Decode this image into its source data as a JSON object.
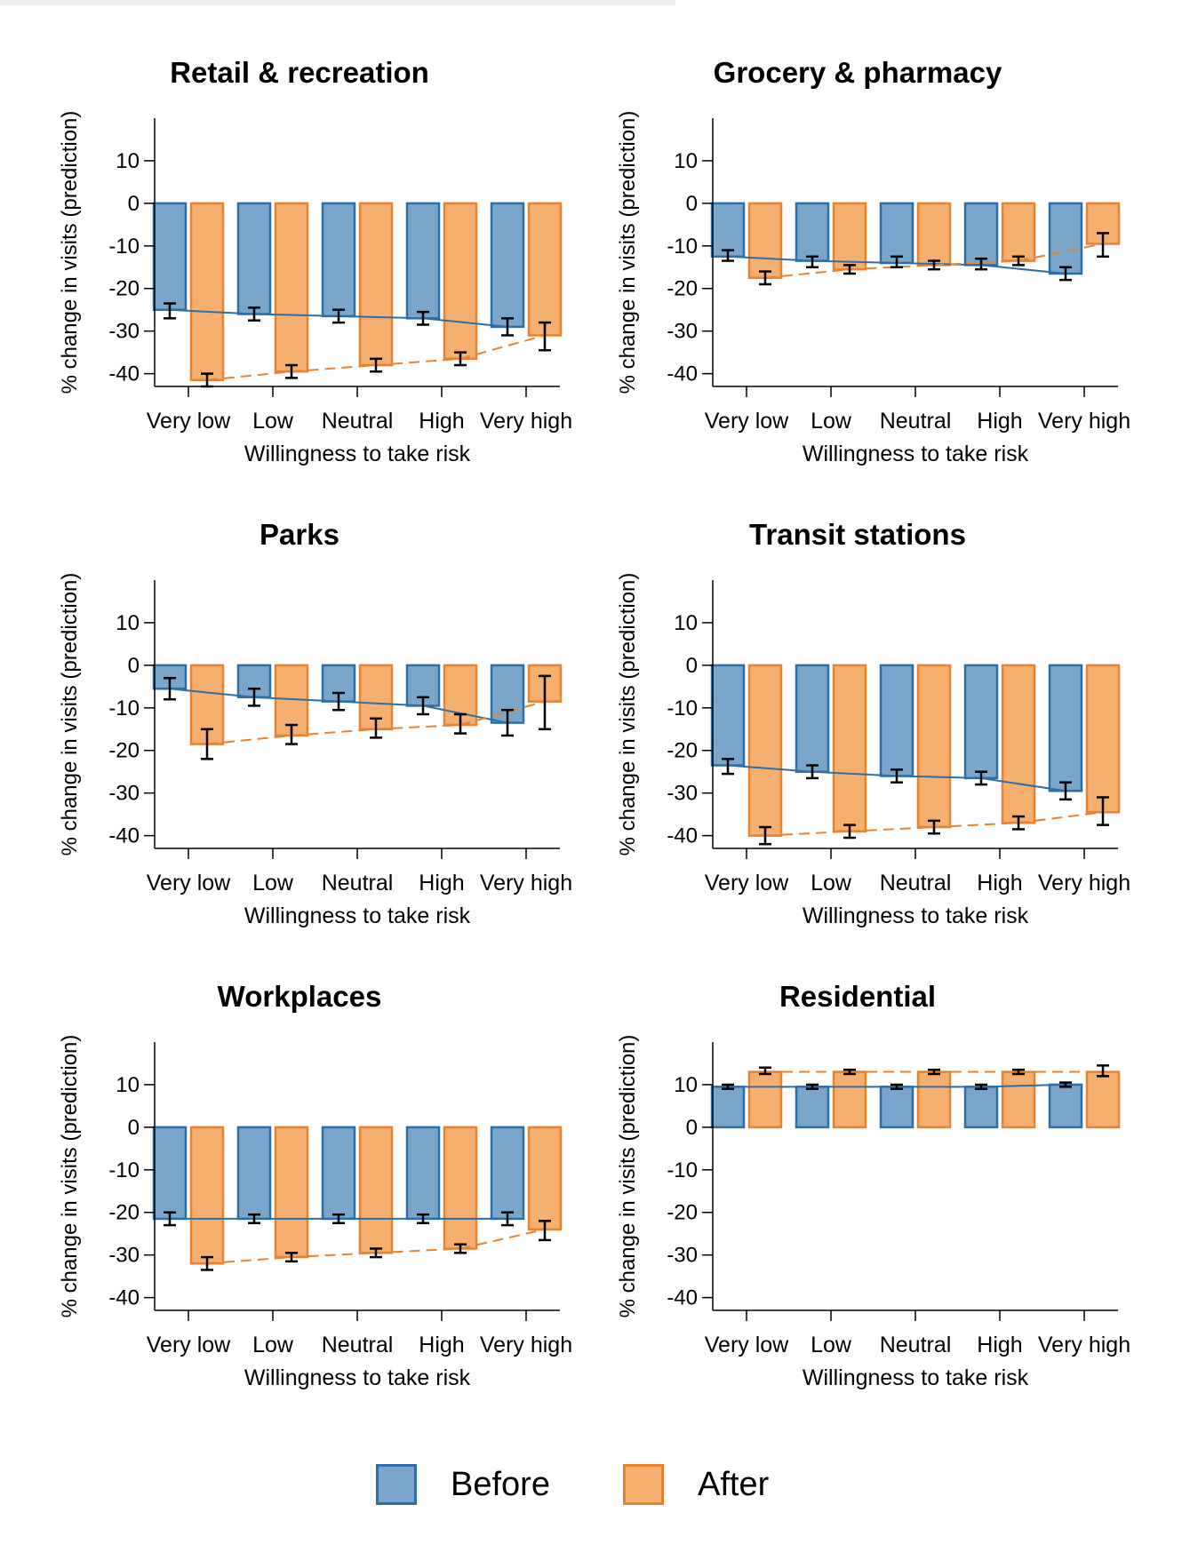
{
  "colors": {
    "before_fill": "#7aa6cc",
    "before_edge": "#2e6ea6",
    "after_fill": "#f5b070",
    "after_edge": "#e8822f",
    "axis": "#000000",
    "errorbar": "#000000"
  },
  "legend": {
    "before_label": "Before",
    "after_label": "After"
  },
  "chart_data": [
    {
      "type": "bar",
      "title": "Retail & recreation",
      "xlabel": "Willingness to take risk",
      "ylabel": "% change in visits (prediction)",
      "categories": [
        "Very low",
        "Low",
        "Neutral",
        "High",
        "Very high"
      ],
      "ylim": [
        -43,
        20
      ],
      "yticks": [
        10,
        0,
        -10,
        -20,
        -30,
        -40
      ],
      "series": [
        {
          "name": "Before",
          "values": [
            -25,
            -26,
            -26.5,
            -27,
            -29
          ],
          "ci": [
            [
              -27,
              -23.5
            ],
            [
              -27.5,
              -24.5
            ],
            [
              -28,
              -25
            ],
            [
              -28.5,
              -25.5
            ],
            [
              -31,
              -27
            ]
          ]
        },
        {
          "name": "After",
          "values": [
            -41.5,
            -39.5,
            -38,
            -36.5,
            -31
          ],
          "ci": [
            [
              -43,
              -40
            ],
            [
              -41,
              -38
            ],
            [
              -39.5,
              -36.5
            ],
            [
              -38,
              -35
            ],
            [
              -34.5,
              -28
            ]
          ]
        }
      ]
    },
    {
      "type": "bar",
      "title": "Grocery & pharmacy",
      "xlabel": "Willingness to take risk",
      "ylabel": "% change in visits (prediction)",
      "categories": [
        "Very low",
        "Low",
        "Neutral",
        "High",
        "Very high"
      ],
      "ylim": [
        -43,
        20
      ],
      "yticks": [
        10,
        0,
        -10,
        -20,
        -30,
        -40
      ],
      "series": [
        {
          "name": "Before",
          "values": [
            -12.5,
            -13.5,
            -14,
            -14.5,
            -16.5
          ],
          "ci": [
            [
              -13.5,
              -11
            ],
            [
              -15,
              -12.5
            ],
            [
              -15,
              -12.5
            ],
            [
              -15.5,
              -13
            ],
            [
              -18,
              -15
            ]
          ]
        },
        {
          "name": "After",
          "values": [
            -17.5,
            -15.5,
            -14.5,
            -13.5,
            -9.5
          ],
          "ci": [
            [
              -19,
              -16
            ],
            [
              -16.5,
              -14.5
            ],
            [
              -15.5,
              -13.5
            ],
            [
              -14.5,
              -12.5
            ],
            [
              -12.5,
              -7
            ]
          ]
        }
      ]
    },
    {
      "type": "bar",
      "title": "Parks",
      "xlabel": "Willingness to take risk",
      "ylabel": "% change in visits (prediction)",
      "categories": [
        "Very low",
        "Low",
        "Neutral",
        "High",
        "Very high"
      ],
      "ylim": [
        -43,
        20
      ],
      "yticks": [
        10,
        0,
        -10,
        -20,
        -30,
        -40
      ],
      "series": [
        {
          "name": "Before",
          "values": [
            -5.5,
            -7.5,
            -8.5,
            -9.5,
            -13.5
          ],
          "ci": [
            [
              -8,
              -3
            ],
            [
              -9.5,
              -5.5
            ],
            [
              -10.5,
              -6.5
            ],
            [
              -11.5,
              -7.5
            ],
            [
              -16.5,
              -10.5
            ]
          ]
        },
        {
          "name": "After",
          "values": [
            -18.5,
            -16.5,
            -15,
            -14,
            -8.5
          ],
          "ci": [
            [
              -22,
              -15
            ],
            [
              -18.5,
              -14
            ],
            [
              -17,
              -12.5
            ],
            [
              -16,
              -11.5
            ],
            [
              -15,
              -2.5
            ]
          ]
        }
      ]
    },
    {
      "type": "bar",
      "title": "Transit stations",
      "xlabel": "Willingness to take risk",
      "ylabel": "% change in visits (prediction)",
      "categories": [
        "Very low",
        "Low",
        "Neutral",
        "High",
        "Very high"
      ],
      "ylim": [
        -43,
        20
      ],
      "yticks": [
        10,
        0,
        -10,
        -20,
        -30,
        -40
      ],
      "series": [
        {
          "name": "Before",
          "values": [
            -23.5,
            -25,
            -26,
            -26.5,
            -29.5
          ],
          "ci": [
            [
              -25.5,
              -22
            ],
            [
              -26.5,
              -23.5
            ],
            [
              -27.5,
              -24.5
            ],
            [
              -28,
              -25
            ],
            [
              -31.5,
              -27.5
            ]
          ]
        },
        {
          "name": "After",
          "values": [
            -40,
            -39,
            -38,
            -37,
            -34.5
          ],
          "ci": [
            [
              -42,
              -38
            ],
            [
              -40.5,
              -37.5
            ],
            [
              -39.5,
              -36.5
            ],
            [
              -38.5,
              -35.5
            ],
            [
              -37.5,
              -31
            ]
          ]
        }
      ]
    },
    {
      "type": "bar",
      "title": "Workplaces",
      "xlabel": "Willingness to take risk",
      "ylabel": "% change in visits (prediction)",
      "categories": [
        "Very low",
        "Low",
        "Neutral",
        "High",
        "Very high"
      ],
      "ylim": [
        -43,
        20
      ],
      "yticks": [
        10,
        0,
        -10,
        -20,
        -30,
        -40
      ],
      "series": [
        {
          "name": "Before",
          "values": [
            -21.5,
            -21.5,
            -21.5,
            -21.5,
            -21.5
          ],
          "ci": [
            [
              -23,
              -20
            ],
            [
              -22.5,
              -20.5
            ],
            [
              -22.5,
              -20.5
            ],
            [
              -22.5,
              -20.5
            ],
            [
              -23,
              -20
            ]
          ]
        },
        {
          "name": "After",
          "values": [
            -32,
            -30.5,
            -29.5,
            -28.5,
            -24
          ],
          "ci": [
            [
              -33.5,
              -30.5
            ],
            [
              -31.5,
              -29.5
            ],
            [
              -30.5,
              -28.5
            ],
            [
              -29.5,
              -27.5
            ],
            [
              -26.5,
              -22
            ]
          ]
        }
      ]
    },
    {
      "type": "bar",
      "title": "Residential",
      "xlabel": "Willingness to take risk",
      "ylabel": "% change in visits (prediction)",
      "categories": [
        "Very low",
        "Low",
        "Neutral",
        "High",
        "Very high"
      ],
      "ylim": [
        -43,
        20
      ],
      "yticks": [
        10,
        0,
        -10,
        -20,
        -30,
        -40
      ],
      "series": [
        {
          "name": "Before",
          "values": [
            9.5,
            9.5,
            9.5,
            9.5,
            10
          ],
          "ci": [
            [
              9,
              10
            ],
            [
              9,
              10
            ],
            [
              9,
              10
            ],
            [
              9,
              10
            ],
            [
              9.5,
              10.5
            ]
          ]
        },
        {
          "name": "After",
          "values": [
            13,
            13,
            13,
            13,
            13
          ],
          "ci": [
            [
              12.5,
              14
            ],
            [
              12.5,
              13.5
            ],
            [
              12.5,
              13.5
            ],
            [
              12.5,
              13.5
            ],
            [
              12,
              14.5
            ]
          ]
        }
      ]
    }
  ]
}
